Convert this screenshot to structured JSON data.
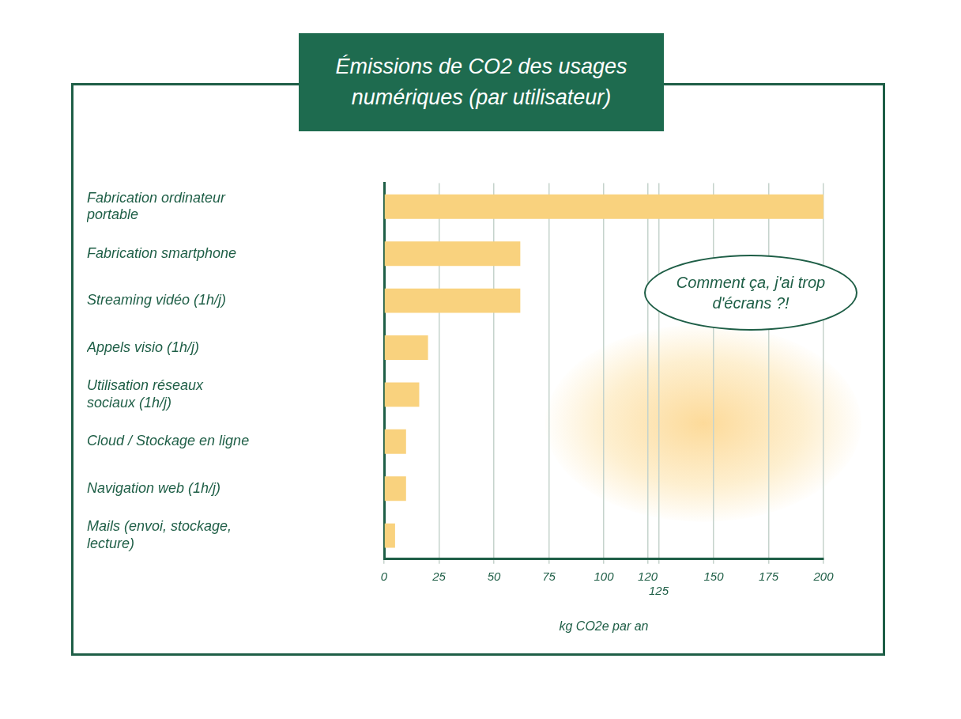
{
  "chart_data": {
    "type": "bar",
    "orientation": "horizontal",
    "title": "Émissions de CO2 des usages numériques (par utilisateur)",
    "categories": [
      "Fabrication ordinateur portable",
      "Fabrication smartphone",
      "Streaming vidéo (1h/j)",
      "Appels visio (1h/j)",
      "Utilisation réseaux sociaux (1h/j)",
      "Cloud / Stockage en ligne",
      "Navigation web (1h/j)",
      "Mails (envoi, stockage, lecture)"
    ],
    "values": [
      200,
      62,
      62,
      20,
      16,
      10,
      10,
      5
    ],
    "color": "#f9d27e",
    "x_label": "kg CO2e par an",
    "xlim": [
      0,
      200
    ],
    "xticks": [
      0,
      25,
      50,
      75,
      100,
      120,
      125,
      150,
      175,
      200
    ],
    "grid": true,
    "annotation": "Comment ça, j'ai trop d'écrans ?!"
  }
}
